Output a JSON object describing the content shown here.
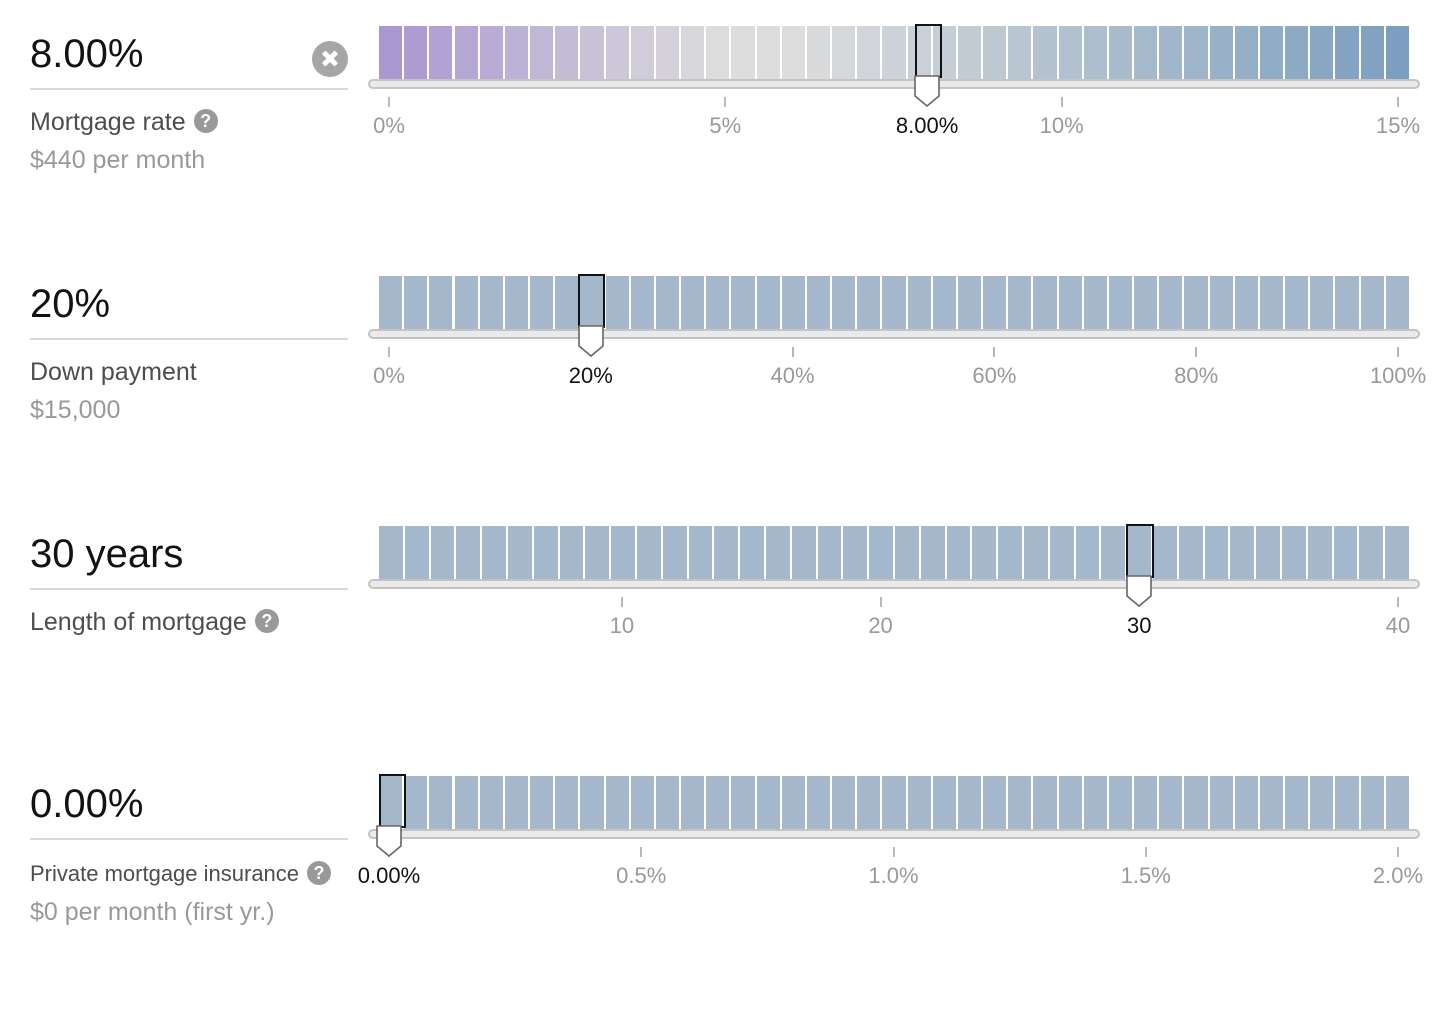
{
  "sliders": [
    {
      "key": "rate",
      "value": "8.00%",
      "label": "Mortgage rate",
      "help": "?",
      "sub": "$440 per month",
      "has_clear": true,
      "min": 0,
      "max": 15,
      "step": 0.375,
      "current": 8.0,
      "current_label": "8.00%",
      "ticks": [
        {
          "value": 0,
          "label": "0%"
        },
        {
          "value": 5,
          "label": "5%"
        },
        {
          "value": 10,
          "label": "10%"
        },
        {
          "value": 15,
          "label": "15%"
        }
      ],
      "gradient": true
    },
    {
      "key": "down",
      "value": "20%",
      "label": "Down payment",
      "help": "",
      "sub": "$15,000",
      "has_clear": false,
      "min": 0,
      "max": 100,
      "step": 2.5,
      "current": 20,
      "current_label": "20%",
      "ticks": [
        {
          "value": 0,
          "label": "0%"
        },
        {
          "value": 20,
          "label": "20%"
        },
        {
          "value": 40,
          "label": "40%"
        },
        {
          "value": 60,
          "label": "60%"
        },
        {
          "value": 80,
          "label": "80%"
        },
        {
          "value": 100,
          "label": "100%"
        }
      ],
      "gradient": false
    },
    {
      "key": "length",
      "value": "30 years",
      "label": "Length of mortgage",
      "help": "?",
      "sub": "",
      "has_clear": false,
      "min": 1,
      "max": 40,
      "step": 1,
      "current": 30,
      "current_label": "30",
      "ticks": [
        {
          "value": 10,
          "label": "10"
        },
        {
          "value": 20,
          "label": "20"
        },
        {
          "value": 30,
          "label": "30"
        },
        {
          "value": 40,
          "label": "40"
        }
      ],
      "gradient": false
    },
    {
      "key": "pmi",
      "value": "0.00%",
      "label": "Private mortgage insurance",
      "help": "?",
      "sub": "$0 per month (first yr.)",
      "has_clear": false,
      "min": 0,
      "max": 2,
      "step": 0.05,
      "current": 0,
      "current_label": "0.00%",
      "ticks": [
        {
          "value": 0,
          "label": "0.00%"
        },
        {
          "value": 0.5,
          "label": "0.5%"
        },
        {
          "value": 1,
          "label": "1.0%"
        },
        {
          "value": 1.5,
          "label": "1.5%"
        },
        {
          "value": 2,
          "label": "2.0%"
        }
      ],
      "gradient": false
    }
  ],
  "colors": {
    "bar_default": "#a5b8cb",
    "gradient_low": "#a897d0",
    "gradient_mid": "#dddddd",
    "gradient_high": "#7d9fbf",
    "tick_label": "#999999",
    "tick_current": "#121212"
  }
}
